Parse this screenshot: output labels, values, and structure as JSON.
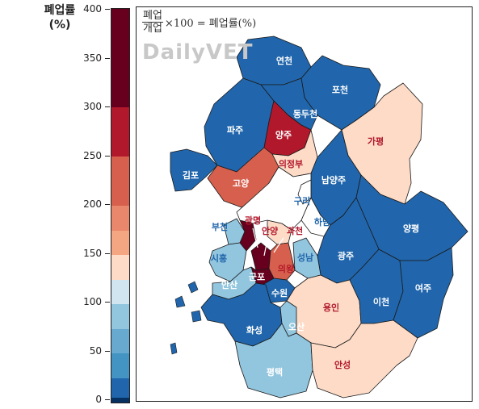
{
  "legend": {
    "title_line1": "폐업률",
    "title_line2": "(%)",
    "ticks": [
      "0",
      "50",
      "100",
      "150",
      "200",
      "250",
      "300",
      "350",
      "400"
    ],
    "bands": [
      {
        "from": 0,
        "to": 5,
        "color": "#053061"
      },
      {
        "from": 5,
        "to": 25,
        "color": "#2166ac"
      },
      {
        "from": 25,
        "to": 50,
        "color": "#4393c3"
      },
      {
        "from": 50,
        "to": 75,
        "color": "#67a9cf"
      },
      {
        "from": 75,
        "to": 100,
        "color": "#92c5de"
      },
      {
        "from": 100,
        "to": 125,
        "color": "#d1e5f0"
      },
      {
        "from": 125,
        "to": 150,
        "color": "#fddbc7"
      },
      {
        "from": 150,
        "to": 175,
        "color": "#f4a582"
      },
      {
        "from": 175,
        "to": 200,
        "color": "#e8876b"
      },
      {
        "from": 200,
        "to": 250,
        "color": "#d6604d"
      },
      {
        "from": 250,
        "to": 300,
        "color": "#b2182b"
      },
      {
        "from": 300,
        "to": 400,
        "color": "#67001f"
      }
    ]
  },
  "formula": {
    "numerator": "폐업",
    "denominator": "개업",
    "rest": "×100 = 폐업률(%)"
  },
  "watermark": "DailyVET",
  "colors": {
    "dark_blue": "#2166ac",
    "light_blue": "#92c5de",
    "peach": "#fddbc7",
    "salmon": "#d6604d",
    "red": "#b2182b",
    "dark_red": "#67001f",
    "label_red": "#b2182b",
    "label_blue": "#2166ac"
  },
  "regions": [
    {
      "id": "yeoncheon",
      "label": "연천",
      "color": "#2166ac",
      "label_color": "#ffffff"
    },
    {
      "id": "pocheon",
      "label": "포천",
      "color": "#2166ac",
      "label_color": "#ffffff"
    },
    {
      "id": "paju",
      "label": "파주",
      "color": "#2166ac",
      "label_color": "#ffffff"
    },
    {
      "id": "dongducheon",
      "label": "동두천",
      "color": "#2166ac",
      "label_color": "#ffffff"
    },
    {
      "id": "yangju",
      "label": "양주",
      "color": "#b2182b",
      "label_color": "#ffffff"
    },
    {
      "id": "gapyeong",
      "label": "가평",
      "color": "#fddbc7",
      "label_color": "#b2182b"
    },
    {
      "id": "uijeongbu",
      "label": "의정부",
      "color": "#fddbc7",
      "label_color": "#b2182b"
    },
    {
      "id": "gimpo",
      "label": "김포",
      "color": "#2166ac",
      "label_color": "#ffffff"
    },
    {
      "id": "goyang",
      "label": "고양",
      "color": "#d6604d",
      "label_color": "#ffffff"
    },
    {
      "id": "namyangju",
      "label": "남양주",
      "color": "#2166ac",
      "label_color": "#ffffff"
    },
    {
      "id": "guri",
      "label": "구리",
      "color": "#ffffff",
      "label_color": "#2166ac"
    },
    {
      "id": "yangpyeong",
      "label": "양평",
      "color": "#2166ac",
      "label_color": "#ffffff"
    },
    {
      "id": "hanam",
      "label": "하남",
      "color": "#ffffff",
      "label_color": "#2166ac"
    },
    {
      "id": "bucheon",
      "label": "부천",
      "color": "#92c5de",
      "label_color": "#2166ac"
    },
    {
      "id": "gwangmyeong",
      "label": "광명",
      "color": "#67001f",
      "label_color": "#b2182b"
    },
    {
      "id": "anyang",
      "label": "안양",
      "color": "#67001f",
      "label_color": "#b2182b"
    },
    {
      "id": "gwacheon",
      "label": "과천",
      "color": "#fddbc7",
      "label_color": "#b2182b"
    },
    {
      "id": "seongnam",
      "label": "성남",
      "color": "#92c5de",
      "label_color": "#2166ac"
    },
    {
      "id": "gwangju",
      "label": "광주",
      "color": "#2166ac",
      "label_color": "#ffffff"
    },
    {
      "id": "siheung",
      "label": "시흥",
      "color": "#92c5de",
      "label_color": "#2166ac"
    },
    {
      "id": "gunpo",
      "label": "군포",
      "color": "#67001f",
      "label_color": "#ffffff"
    },
    {
      "id": "uiwang",
      "label": "의왕",
      "color": "#d6604d",
      "label_color": "#b2182b"
    },
    {
      "id": "ansan",
      "label": "안산",
      "color": "#92c5de",
      "label_color": "#ffffff"
    },
    {
      "id": "suwon",
      "label": "수원",
      "color": "#2166ac",
      "label_color": "#ffffff"
    },
    {
      "id": "yongin",
      "label": "용인",
      "color": "#fddbc7",
      "label_color": "#b2182b"
    },
    {
      "id": "icheon",
      "label": "이천",
      "color": "#2166ac",
      "label_color": "#ffffff"
    },
    {
      "id": "yeoju",
      "label": "여주",
      "color": "#2166ac",
      "label_color": "#ffffff"
    },
    {
      "id": "hwaseong",
      "label": "화성",
      "color": "#2166ac",
      "label_color": "#ffffff"
    },
    {
      "id": "osan",
      "label": "오산",
      "color": "#92c5de",
      "label_color": "#ffffff"
    },
    {
      "id": "pyeongtaek",
      "label": "평택",
      "color": "#92c5de",
      "label_color": "#ffffff"
    },
    {
      "id": "anseong",
      "label": "안성",
      "color": "#fddbc7",
      "label_color": "#b2182b"
    }
  ]
}
